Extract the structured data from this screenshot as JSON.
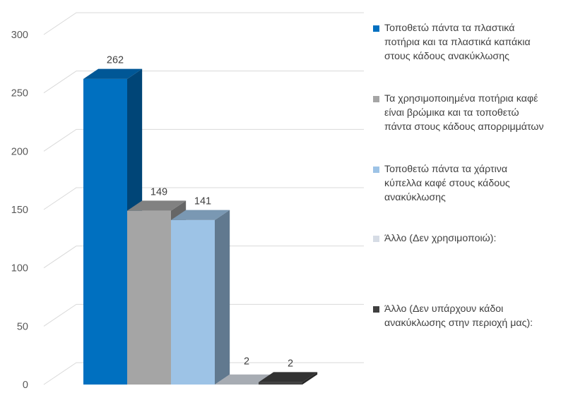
{
  "chart_data": {
    "type": "bar",
    "style": "3d-clustered-column",
    "title": "",
    "xlabel": "",
    "ylabel": "",
    "ylim": [
      0,
      300
    ],
    "y_ticks": [
      0,
      50,
      100,
      150,
      200,
      250,
      300
    ],
    "grid": true,
    "legend_position": "right",
    "series": [
      {
        "name": "Τοποθετώ πάντα τα πλαστικά ποτήρια και τα πλαστικά καπάκια στους κάδους ανακύκλωσης",
        "value": 262,
        "color": "#0070C0",
        "label": "262"
      },
      {
        "name": "Τα χρησιμοποιημένα ποτήρια καφέ είναι βρώμικα και τα τοποθετώ πάντα στους κάδους απορριμμάτων",
        "value": 149,
        "color": "#A5A5A5",
        "label": "149"
      },
      {
        "name": "Τοποθετώ πάντα τα χάρτινα κύπελλα καφέ στους κάδους ανακύκλωσης",
        "value": 141,
        "color": "#9DC3E6",
        "label": "141"
      },
      {
        "name": "Άλλο (Δεν χρησιμοποιώ):",
        "value": 0,
        "color": "#D6DCE5",
        "label": ""
      },
      {
        "name": "Άλλο (Δεν υπάρχουν κάδοι ανακύκλωσης στην περιοχή μας):",
        "value": 2,
        "color": "#404040",
        "label": "2"
      }
    ],
    "extra_labels": [
      "2"
    ]
  },
  "legend_lines": [
    "Τοποθετώ πάντα τα πλαστικά\nποτήρια και τα πλαστικά καπάκια\nστους κάδους ανακύκλωσης",
    "Τα χρησιμοποιημένα ποτήρια καφέ\nείναι βρώμικα και τα τοποθετώ\nπάντα στους κάδους απορριμμάτων",
    "Τοποθετώ πάντα τα χάρτινα\nκύπελλα καφέ στους κάδους\nανακύκλωσης",
    "Άλλο (Δεν χρησιμοποιώ):",
    "Άλλο (Δεν υπάρχουν κάδοι\nανακύκλωσης στην περιοχή μας):"
  ]
}
